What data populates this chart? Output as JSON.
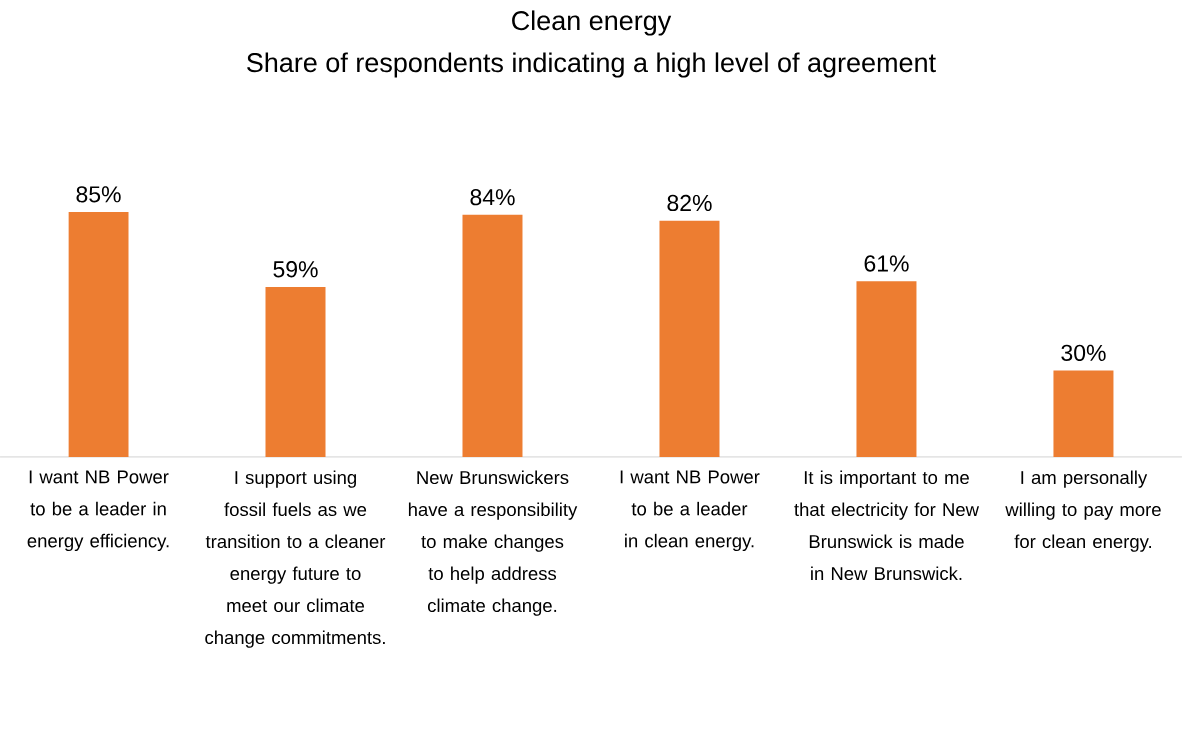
{
  "chart_data": {
    "type": "bar",
    "title": "Clean energy",
    "subtitle": "Share of respondents indicating a high level of agreement",
    "categories": [
      "I want NB Power to be a leader in energy efficiency.",
      "I support using fossil fuels as we transition to a cleaner energy future to meet our climate change commitments.",
      "New Brunswickers have a responsibility to make changes to help address climate change.",
      "I want NB Power to be a leader in clean energy.",
      "It is important to me that electricity for New Brunswick is made in New Brunswick.",
      "I am personally willing to pay more for clean energy."
    ],
    "values": [
      85,
      59,
      84,
      82,
      61,
      30
    ],
    "value_labels": [
      "85%",
      "59%",
      "84%",
      "82%",
      "61%",
      "30%"
    ],
    "color": "#ed7d31"
  }
}
